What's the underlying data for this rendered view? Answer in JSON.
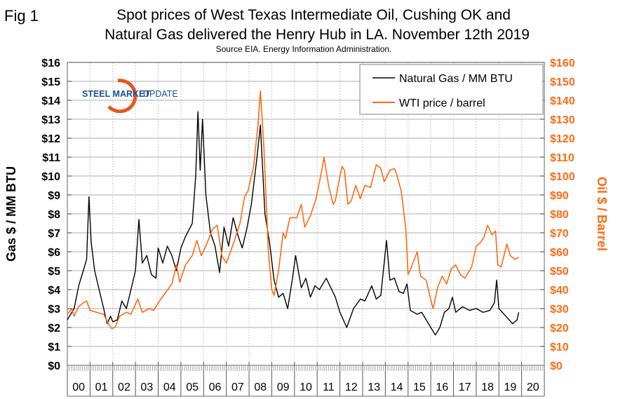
{
  "figure_label": "Fig 1",
  "logo_text": {
    "bold": "STEEL MARKET",
    "light": "UPDATE"
  },
  "colors": {
    "gas": "#000000",
    "oil": "#ff6a13",
    "grid": "#c8c8c8"
  },
  "chart_data": {
    "type": "line",
    "title": [
      "Spot prices of West Texas Intermediate Oil, Cushing OK and",
      "Natural Gas delivered the Henry Hub in LA. November 12th 2019"
    ],
    "subtitle": "Source EIA. Energy Information Administration.",
    "ylabel_left": "Gas $ / MM BTU",
    "ylabel_right": "Oil $ / Barrel",
    "ylim_left": [
      0,
      16
    ],
    "ylim_right": [
      0,
      160
    ],
    "yticks_left": [
      "$0",
      "$1",
      "$2",
      "$3",
      "$4",
      "$5",
      "$6",
      "$7",
      "$8",
      "$9",
      "$10",
      "$11",
      "$12",
      "$13",
      "$14",
      "$15",
      "$16"
    ],
    "yticks_right": [
      "$0",
      "$10",
      "$20",
      "$30",
      "$40",
      "$50",
      "$60",
      "$70",
      "$80",
      "$90",
      "$100",
      "$110",
      "$120",
      "$130",
      "$140",
      "$150",
      "$160"
    ],
    "xlim": [
      2000,
      2021
    ],
    "xticks": [
      "00",
      "01",
      "02",
      "03",
      "04",
      "05",
      "06",
      "07",
      "08",
      "09",
      "10",
      "11",
      "12",
      "13",
      "14",
      "15",
      "16",
      "17",
      "18",
      "19",
      "20"
    ],
    "grid": true,
    "legend_position": "top-right",
    "series": [
      {
        "name": "Natural Gas / MM BTU",
        "axis": "left",
        "color": "#000000",
        "points": [
          [
            2000.0,
            2.4
          ],
          [
            2000.3,
            3.0
          ],
          [
            2000.5,
            4.2
          ],
          [
            2000.7,
            5.0
          ],
          [
            2000.85,
            5.6
          ],
          [
            2000.95,
            8.9
          ],
          [
            2001.05,
            6.5
          ],
          [
            2001.2,
            5.0
          ],
          [
            2001.4,
            4.0
          ],
          [
            2001.6,
            3.0
          ],
          [
            2001.75,
            2.2
          ],
          [
            2001.9,
            2.6
          ],
          [
            2002.0,
            2.3
          ],
          [
            2002.2,
            2.4
          ],
          [
            2002.4,
            3.4
          ],
          [
            2002.6,
            3.0
          ],
          [
            2002.8,
            4.0
          ],
          [
            2003.0,
            5.0
          ],
          [
            2003.15,
            7.7
          ],
          [
            2003.3,
            5.4
          ],
          [
            2003.5,
            5.8
          ],
          [
            2003.7,
            4.8
          ],
          [
            2003.9,
            4.6
          ],
          [
            2004.0,
            6.2
          ],
          [
            2004.2,
            5.4
          ],
          [
            2004.4,
            6.3
          ],
          [
            2004.6,
            5.8
          ],
          [
            2004.8,
            5.0
          ],
          [
            2005.0,
            6.2
          ],
          [
            2005.2,
            6.8
          ],
          [
            2005.5,
            7.5
          ],
          [
            2005.65,
            10.0
          ],
          [
            2005.75,
            13.4
          ],
          [
            2005.85,
            10.3
          ],
          [
            2005.95,
            13.0
          ],
          [
            2006.1,
            9.0
          ],
          [
            2006.3,
            7.0
          ],
          [
            2006.5,
            6.3
          ],
          [
            2006.7,
            4.9
          ],
          [
            2006.9,
            7.3
          ],
          [
            2007.1,
            6.3
          ],
          [
            2007.3,
            7.8
          ],
          [
            2007.5,
            6.9
          ],
          [
            2007.7,
            6.2
          ],
          [
            2007.9,
            7.2
          ],
          [
            2008.1,
            8.5
          ],
          [
            2008.35,
            11.0
          ],
          [
            2008.5,
            12.7
          ],
          [
            2008.7,
            8.0
          ],
          [
            2008.9,
            6.5
          ],
          [
            2009.1,
            4.5
          ],
          [
            2009.3,
            3.6
          ],
          [
            2009.5,
            3.8
          ],
          [
            2009.7,
            3.0
          ],
          [
            2009.9,
            4.5
          ],
          [
            2010.05,
            5.8
          ],
          [
            2010.3,
            4.1
          ],
          [
            2010.5,
            4.6
          ],
          [
            2010.7,
            3.6
          ],
          [
            2010.9,
            4.2
          ],
          [
            2011.1,
            4.0
          ],
          [
            2011.4,
            4.6
          ],
          [
            2011.6,
            4.1
          ],
          [
            2011.8,
            3.6
          ],
          [
            2012.0,
            2.8
          ],
          [
            2012.3,
            2.0
          ],
          [
            2012.6,
            3.0
          ],
          [
            2012.9,
            3.5
          ],
          [
            2013.1,
            3.4
          ],
          [
            2013.4,
            4.2
          ],
          [
            2013.6,
            3.5
          ],
          [
            2013.8,
            3.7
          ],
          [
            2014.05,
            6.6
          ],
          [
            2014.2,
            4.5
          ],
          [
            2014.4,
            4.6
          ],
          [
            2014.6,
            3.9
          ],
          [
            2014.8,
            3.8
          ],
          [
            2014.95,
            4.3
          ],
          [
            2015.1,
            2.9
          ],
          [
            2015.4,
            2.7
          ],
          [
            2015.6,
            2.8
          ],
          [
            2015.9,
            2.2
          ],
          [
            2016.2,
            1.6
          ],
          [
            2016.4,
            2.0
          ],
          [
            2016.6,
            2.8
          ],
          [
            2016.8,
            3.0
          ],
          [
            2016.95,
            3.6
          ],
          [
            2017.1,
            2.8
          ],
          [
            2017.4,
            3.1
          ],
          [
            2017.7,
            2.9
          ],
          [
            2018.0,
            3.0
          ],
          [
            2018.3,
            2.8
          ],
          [
            2018.6,
            2.9
          ],
          [
            2018.8,
            3.3
          ],
          [
            2018.9,
            4.5
          ],
          [
            2019.0,
            3.0
          ],
          [
            2019.3,
            2.6
          ],
          [
            2019.6,
            2.2
          ],
          [
            2019.8,
            2.4
          ],
          [
            2019.87,
            2.8
          ]
        ]
      },
      {
        "name": "WTI price / barrel",
        "axis": "right",
        "color": "#ff6a13",
        "points": [
          [
            2000.0,
            27
          ],
          [
            2000.2,
            30
          ],
          [
            2000.3,
            26
          ],
          [
            2000.5,
            31
          ],
          [
            2000.7,
            33
          ],
          [
            2000.85,
            34
          ],
          [
            2001.0,
            29
          ],
          [
            2001.3,
            28
          ],
          [
            2001.6,
            27
          ],
          [
            2001.8,
            22
          ],
          [
            2001.95,
            19.5
          ],
          [
            2002.1,
            20
          ],
          [
            2002.3,
            26
          ],
          [
            2002.6,
            28
          ],
          [
            2002.8,
            27
          ],
          [
            2003.1,
            35
          ],
          [
            2003.3,
            28
          ],
          [
            2003.6,
            30
          ],
          [
            2003.8,
            29
          ],
          [
            2004.0,
            33
          ],
          [
            2004.3,
            38
          ],
          [
            2004.6,
            43
          ],
          [
            2004.8,
            53
          ],
          [
            2004.95,
            44
          ],
          [
            2005.2,
            53
          ],
          [
            2005.5,
            58
          ],
          [
            2005.7,
            66
          ],
          [
            2005.9,
            58
          ],
          [
            2006.1,
            63
          ],
          [
            2006.4,
            72
          ],
          [
            2006.6,
            74
          ],
          [
            2006.8,
            58
          ],
          [
            2007.0,
            54
          ],
          [
            2007.3,
            64
          ],
          [
            2007.6,
            75
          ],
          [
            2007.8,
            89
          ],
          [
            2007.95,
            92
          ],
          [
            2008.2,
            105
          ],
          [
            2008.4,
            128
          ],
          [
            2008.5,
            145
          ],
          [
            2008.65,
            116
          ],
          [
            2008.85,
            60
          ],
          [
            2009.0,
            40
          ],
          [
            2009.1,
            37
          ],
          [
            2009.3,
            50
          ],
          [
            2009.5,
            70
          ],
          [
            2009.6,
            67
          ],
          [
            2009.8,
            78
          ],
          [
            2010.1,
            78
          ],
          [
            2010.3,
            85
          ],
          [
            2010.45,
            73
          ],
          [
            2010.7,
            79
          ],
          [
            2010.95,
            88
          ],
          [
            2011.2,
            103
          ],
          [
            2011.3,
            110
          ],
          [
            2011.5,
            95
          ],
          [
            2011.7,
            85
          ],
          [
            2011.8,
            87
          ],
          [
            2012.0,
            100
          ],
          [
            2012.1,
            105
          ],
          [
            2012.2,
            103
          ],
          [
            2012.35,
            85
          ],
          [
            2012.5,
            87
          ],
          [
            2012.7,
            95
          ],
          [
            2012.9,
            88
          ],
          [
            2013.1,
            95
          ],
          [
            2013.35,
            94
          ],
          [
            2013.6,
            106
          ],
          [
            2013.8,
            104
          ],
          [
            2013.95,
            97
          ],
          [
            2014.2,
            103
          ],
          [
            2014.4,
            104
          ],
          [
            2014.5,
            101
          ],
          [
            2014.7,
            92
          ],
          [
            2014.9,
            72
          ],
          [
            2015.0,
            48
          ],
          [
            2015.15,
            52
          ],
          [
            2015.4,
            60
          ],
          [
            2015.55,
            47
          ],
          [
            2015.8,
            45
          ],
          [
            2015.95,
            37
          ],
          [
            2016.1,
            30
          ],
          [
            2016.3,
            41
          ],
          [
            2016.5,
            47
          ],
          [
            2016.7,
            43
          ],
          [
            2016.9,
            51
          ],
          [
            2017.1,
            53
          ],
          [
            2017.3,
            48
          ],
          [
            2017.5,
            46
          ],
          [
            2017.8,
            52
          ],
          [
            2018.0,
            63
          ],
          [
            2018.2,
            65
          ],
          [
            2018.35,
            68
          ],
          [
            2018.5,
            74
          ],
          [
            2018.7,
            69
          ],
          [
            2018.85,
            71
          ],
          [
            2018.95,
            53
          ],
          [
            2019.1,
            52
          ],
          [
            2019.35,
            64
          ],
          [
            2019.5,
            58
          ],
          [
            2019.7,
            56
          ],
          [
            2019.87,
            57
          ]
        ]
      }
    ]
  }
}
